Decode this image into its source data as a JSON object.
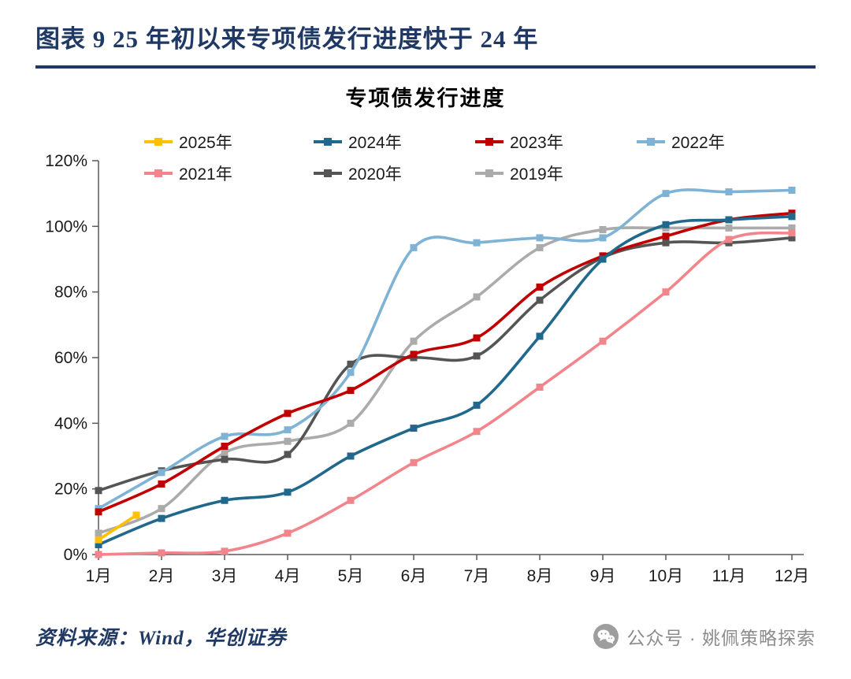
{
  "header": {
    "title": "图表 9  25 年初以来专项债发行进度快于 24 年"
  },
  "footer": {
    "source": "资料来源：Wind，华创证券",
    "account": "公众号 · 姚佩策略探索"
  },
  "icons": {
    "wechat": "wechat-icon"
  },
  "chart_data": {
    "type": "line",
    "title": "专项债发行进度",
    "categories": [
      "1月",
      "2月",
      "3月",
      "4月",
      "5月",
      "6月",
      "7月",
      "8月",
      "9月",
      "10月",
      "11月",
      "12月"
    ],
    "ylim": [
      0,
      120
    ],
    "y_ticks": [
      0,
      20,
      40,
      60,
      80,
      100,
      120
    ],
    "y_tick_labels": [
      "0%",
      "20%",
      "40%",
      "60%",
      "80%",
      "100%",
      "120%"
    ],
    "grid": false,
    "legend_position": "top",
    "axis_color": "#595959",
    "series": [
      {
        "name": "2025年",
        "color": "#FFC000",
        "x": [
          1,
          1.6
        ],
        "values": [
          4.5,
          12
        ]
      },
      {
        "name": "2024年",
        "color": "#20698C",
        "values": [
          3,
          11,
          16.5,
          19,
          30,
          38.5,
          45.5,
          66.5,
          90,
          100.5,
          102,
          103
        ]
      },
      {
        "name": "2023年",
        "color": "#C00000",
        "values": [
          13,
          21.5,
          33,
          43,
          50,
          61,
          66,
          81.5,
          91,
          97,
          102,
          104
        ]
      },
      {
        "name": "2022年",
        "color": "#7FB3D5",
        "values": [
          14,
          25,
          36,
          38,
          55.5,
          93.5,
          95,
          96.5,
          96.5,
          110,
          110.5,
          111
        ]
      },
      {
        "name": "2021年",
        "color": "#F2858B",
        "values": [
          0,
          0.5,
          1,
          6.5,
          16.5,
          28,
          37.5,
          51,
          65,
          80,
          96,
          98
        ]
      },
      {
        "name": "2020年",
        "color": "#555555",
        "values": [
          19.5,
          25.5,
          29,
          30.5,
          58,
          60,
          60.5,
          77.5,
          90.5,
          95,
          95,
          96.5
        ]
      },
      {
        "name": "2019年",
        "color": "#ABABAB",
        "values": [
          6.5,
          14,
          31,
          34.5,
          40,
          65,
          78.5,
          93.5,
          99,
          99.5,
          99.5,
          99.5
        ]
      }
    ]
  }
}
